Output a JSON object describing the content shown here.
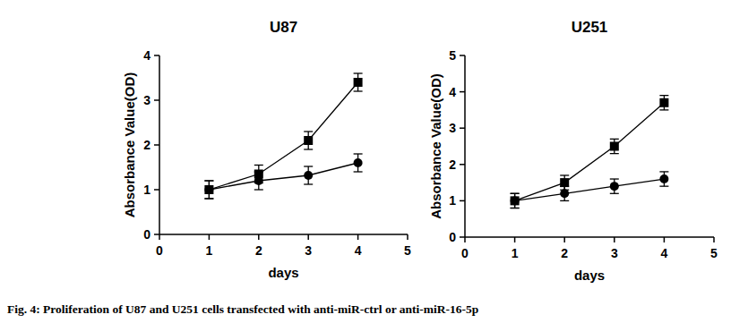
{
  "chart_data": [
    {
      "type": "line",
      "title": "U87",
      "x_label": "days",
      "y_label": "Absorbance Value(OD)",
      "x": [
        1,
        2,
        3,
        4
      ],
      "series": [
        {
          "color": "#000000",
          "marker": "square",
          "values": [
            1.0,
            1.35,
            2.1,
            3.4
          ],
          "errors": [
            0.2,
            0.2,
            0.2,
            0.2
          ]
        },
        {
          "color": "#000000",
          "marker": "circle",
          "values": [
            1.0,
            1.2,
            1.32,
            1.6
          ],
          "errors": [
            0.2,
            0.2,
            0.2,
            0.2
          ]
        }
      ],
      "xlim": [
        0,
        5
      ],
      "xticks": [
        0,
        1,
        2,
        3,
        4,
        5
      ],
      "ylim": [
        0,
        4
      ],
      "yticks": [
        0,
        1,
        2,
        3,
        4
      ],
      "grid": false
    },
    {
      "type": "line",
      "title": "U251",
      "x_label": "days",
      "y_label": "Absorbance Value(OD)",
      "x": [
        1,
        2,
        3,
        4
      ],
      "series": [
        {
          "color": "#000000",
          "marker": "square",
          "values": [
            1.0,
            1.5,
            2.5,
            3.7
          ],
          "errors": [
            0.2,
            0.2,
            0.2,
            0.2
          ]
        },
        {
          "color": "#000000",
          "marker": "circle",
          "values": [
            1.0,
            1.2,
            1.4,
            1.6
          ],
          "errors": [
            0.2,
            0.2,
            0.2,
            0.2
          ]
        }
      ],
      "xlim": [
        0,
        5
      ],
      "xticks": [
        0,
        1,
        2,
        3,
        4,
        5
      ],
      "ylim": [
        0,
        5
      ],
      "yticks": [
        0,
        1,
        2,
        3,
        4,
        5
      ],
      "grid": false
    }
  ],
  "caption": "Fig. 4: Proliferation of U87 and U251 cells transfected with anti-miR-ctrl or anti-miR-16-5p"
}
